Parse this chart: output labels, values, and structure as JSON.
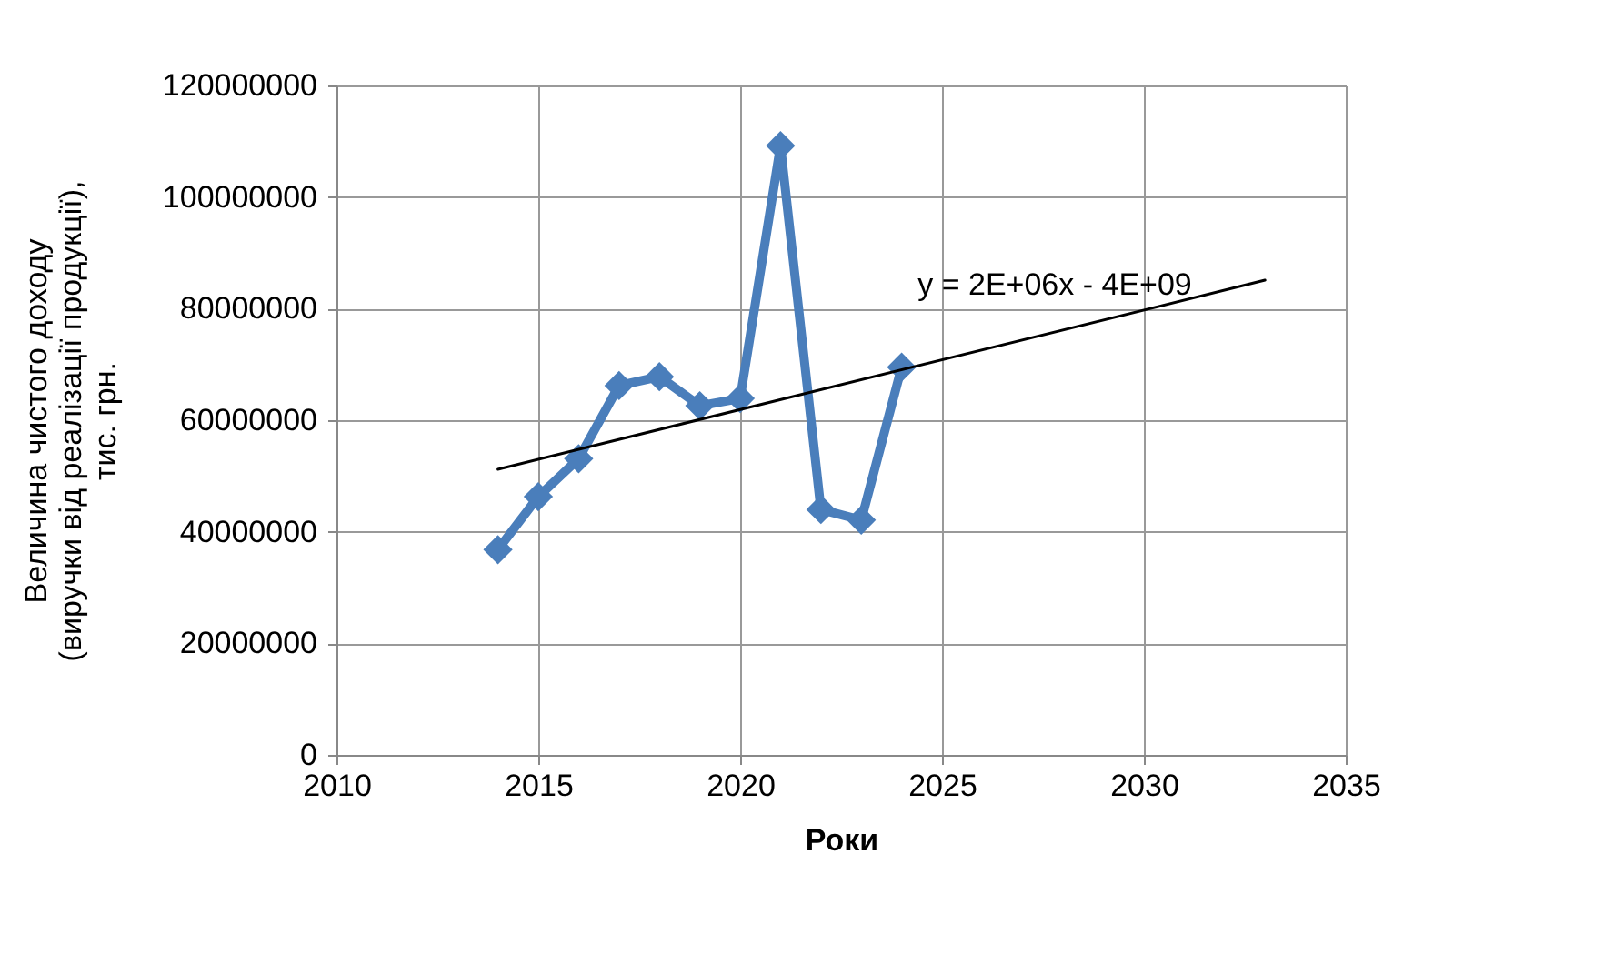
{
  "chart_data": {
    "type": "line",
    "xlabel": "Роки",
    "ylabel": "Величина чистого  доходу\n(виручки від реалізації продукції),\nтис. грн.",
    "x": [
      2014,
      2015,
      2016,
      2017,
      2018,
      2019,
      2020,
      2021,
      2022,
      2023,
      2024
    ],
    "series": [
      {
        "color": "#4a7ebb",
        "marker": "diamond",
        "values": [
          36800000,
          46300000,
          53100000,
          66200000,
          67800000,
          62600000,
          63900000,
          109200000,
          44000000,
          42100000,
          69500000
        ]
      },
      {
        "type": "line",
        "color": "#000000",
        "marker": "none",
        "x": [
          2014,
          2033
        ],
        "values": [
          51200000,
          85100000
        ]
      }
    ],
    "xlim": [
      2010,
      2035
    ],
    "xticks": [
      2010,
      2015,
      2020,
      2025,
      2030,
      2035
    ],
    "ylim": [
      0,
      120000000
    ],
    "yticks": [
      0,
      20000000,
      40000000,
      60000000,
      80000000,
      100000000,
      120000000
    ],
    "grid": true,
    "annotations": [
      "y = 2E+06x - 4E+09"
    ]
  }
}
